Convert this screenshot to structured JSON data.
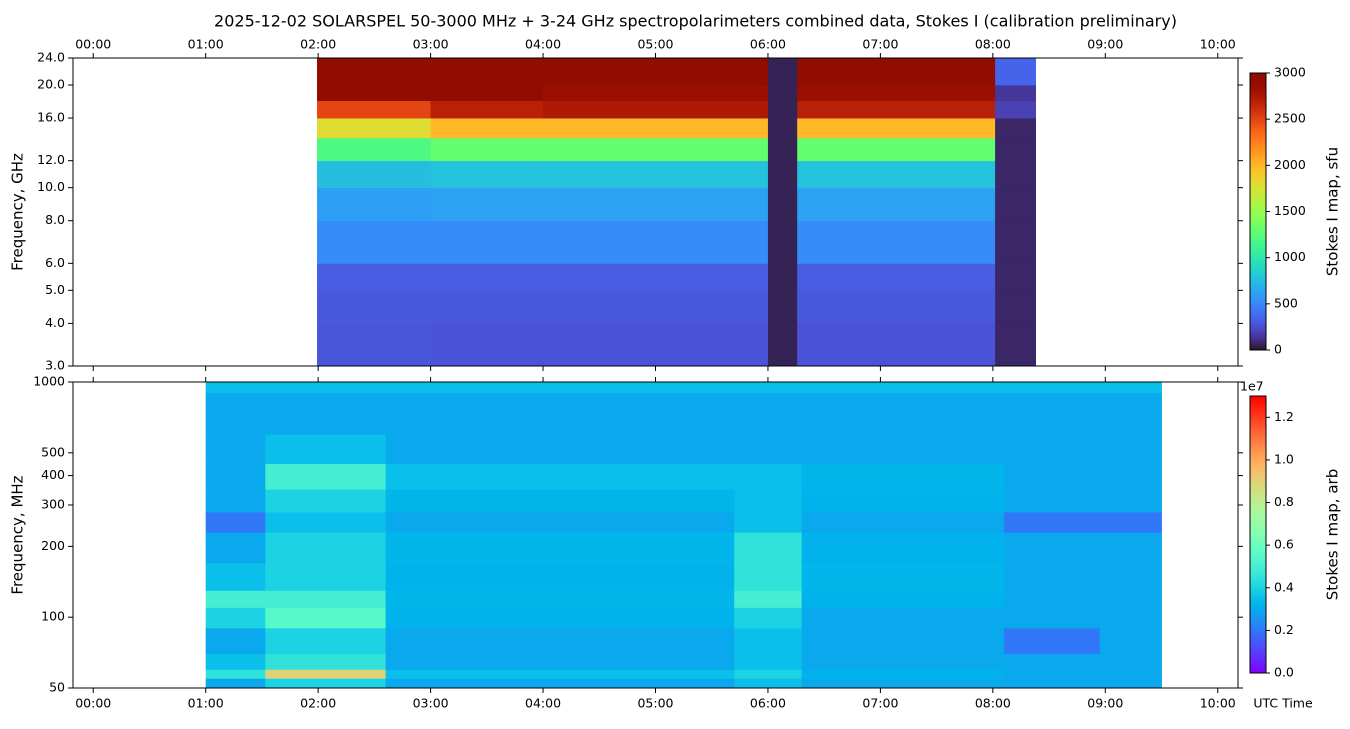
{
  "chart_data": [
    {
      "type": "heatmap",
      "title": "2025-12-02  SOLARSPEL  50-3000 MHz  +  3-24 GHz  spectropolarimeters combined data,  Stokes I  (calibration preliminary)",
      "ylabel": "Frequency, GHz",
      "colorbar_label": "Stokes I map, sfu",
      "colormap": "turbo",
      "log_y": true,
      "x_tick_position": "top",
      "xlim": [
        -0.18,
        10.18
      ],
      "xticks": [
        {
          "value": 0,
          "label": "00:00"
        },
        {
          "value": 1,
          "label": "01:00"
        },
        {
          "value": 2,
          "label": "02:00"
        },
        {
          "value": 3,
          "label": "03:00"
        },
        {
          "value": 4,
          "label": "04:00"
        },
        {
          "value": 5,
          "label": "05:00"
        },
        {
          "value": 6,
          "label": "06:00"
        },
        {
          "value": 7,
          "label": "07:00"
        },
        {
          "value": 8,
          "label": "08:00"
        },
        {
          "value": 9,
          "label": "09:00"
        },
        {
          "value": 10,
          "label": "10:00"
        }
      ],
      "ylim": [
        3,
        24
      ],
      "yticks": [
        {
          "value": 3,
          "label": "3.0"
        },
        {
          "value": 4,
          "label": "4.0"
        },
        {
          "value": 5,
          "label": "5.0"
        },
        {
          "value": 6,
          "label": "6.0"
        },
        {
          "value": 8,
          "label": "8.0"
        },
        {
          "value": 10,
          "label": "10.0"
        },
        {
          "value": 12,
          "label": "12.0"
        },
        {
          "value": 16,
          "label": "16.0"
        },
        {
          "value": 20,
          "label": "20.0"
        },
        {
          "value": 24,
          "label": "24.0"
        }
      ],
      "clim": [
        0,
        3000
      ],
      "cticks": [
        0,
        500,
        1000,
        1500,
        2000,
        2500,
        3000
      ],
      "time_bins": [
        1.99,
        3.0,
        4.0,
        5.0,
        6.0,
        6.26,
        8.02,
        8.38
      ],
      "freq_bins": [
        3,
        4,
        5,
        6,
        8,
        10,
        12,
        14,
        16,
        18,
        20,
        24
      ],
      "values": [
        [
          290,
          300,
          320,
          520,
          600,
          750,
          1200,
          1800,
          2500,
          3000,
          3000
        ],
        [
          280,
          300,
          320,
          520,
          620,
          780,
          1300,
          2000,
          2700,
          2900,
          3000
        ],
        [
          280,
          300,
          320,
          520,
          620,
          780,
          1300,
          2000,
          2750,
          2850,
          3000
        ],
        [
          280,
          300,
          320,
          520,
          620,
          780,
          1300,
          2000,
          2750,
          2850,
          3000
        ],
        [
          60,
          60,
          60,
          60,
          60,
          60,
          60,
          60,
          60,
          60,
          60
        ],
        [
          280,
          300,
          320,
          520,
          620,
          780,
          1300,
          2000,
          2700,
          2850,
          3000
        ],
        [
          80,
          80,
          80,
          80,
          80,
          80,
          80,
          80,
          200,
          150,
          350
        ]
      ]
    },
    {
      "type": "heatmap",
      "ylabel": "Frequency, MHz",
      "xlabel": "UTC Time",
      "colorbar_label": "Stokes I map, arb",
      "colorbar_offset": "1e7",
      "colormap": "rainbow",
      "log_y": true,
      "x_tick_position": "bottom",
      "xlim": [
        -0.18,
        10.18
      ],
      "xticks": [
        {
          "value": 0,
          "label": "00:00"
        },
        {
          "value": 1,
          "label": "01:00"
        },
        {
          "value": 2,
          "label": "02:00"
        },
        {
          "value": 3,
          "label": "03:00"
        },
        {
          "value": 4,
          "label": "04:00"
        },
        {
          "value": 5,
          "label": "05:00"
        },
        {
          "value": 6,
          "label": "06:00"
        },
        {
          "value": 7,
          "label": "07:00"
        },
        {
          "value": 8,
          "label": "08:00"
        },
        {
          "value": 9,
          "label": "09:00"
        },
        {
          "value": 10,
          "label": "10:00"
        }
      ],
      "ylim": [
        50,
        1000
      ],
      "yticks": [
        50,
        100,
        200,
        300,
        400,
        500,
        1000
      ],
      "clim": [
        0,
        13000000
      ],
      "cticks": [
        {
          "value": 0,
          "label": "0.0"
        },
        {
          "value": 2000000,
          "label": "0.2"
        },
        {
          "value": 4000000,
          "label": "0.4"
        },
        {
          "value": 6000000,
          "label": "0.6"
        },
        {
          "value": 8000000,
          "label": "0.8"
        },
        {
          "value": 10000000,
          "label": "1.0"
        },
        {
          "value": 12000000,
          "label": "1.2"
        }
      ],
      "time_bins": [
        1.0,
        1.53,
        2.6,
        5.7,
        6.3,
        8.1,
        8.95,
        9.5
      ],
      "freq_bins": [
        50,
        55,
        60,
        70,
        90,
        110,
        130,
        170,
        230,
        280,
        350,
        450,
        600,
        900,
        1000
      ],
      "values": [
        [
          3000000,
          4500000,
          3500000,
          3000000,
          4000000,
          5000000,
          3500000,
          3000000,
          2000000,
          3000000,
          3000000,
          3000000,
          3000000,
          3500000
        ],
        [
          4000000,
          9000000,
          4500000,
          4000000,
          5500000,
          5000000,
          4000000,
          4000000,
          3500000,
          4000000,
          5000000,
          3500000,
          3000000,
          3500000
        ],
        [
          3000000,
          3500000,
          3000000,
          3000000,
          3200000,
          3300000,
          3200000,
          3300000,
          3000000,
          3300000,
          3500000,
          3000000,
          3000000,
          3500000
        ],
        [
          3500000,
          4000000,
          3500000,
          3500000,
          4000000,
          5000000,
          4500000,
          4500000,
          3500000,
          3500000,
          3500000,
          3000000,
          3000000,
          3500000
        ],
        [
          3000000,
          3200000,
          3000000,
          3000000,
          3000000,
          3200000,
          3300000,
          3200000,
          3000000,
          3200000,
          3300000,
          3000000,
          3000000,
          3500000
        ],
        [
          3000000,
          3000000,
          3000000,
          2000000,
          3000000,
          3000000,
          3000000,
          3000000,
          2000000,
          3000000,
          3000000,
          3000000,
          3000000,
          3500000
        ],
        [
          3000000,
          3000000,
          3000000,
          3000000,
          3000000,
          3000000,
          3000000,
          3000000,
          2000000,
          3000000,
          3000000,
          3000000,
          3000000,
          3500000
        ]
      ]
    }
  ]
}
